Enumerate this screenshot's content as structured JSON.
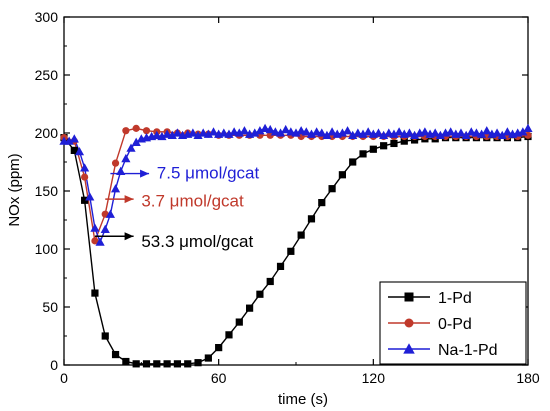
{
  "chart_data": {
    "type": "line",
    "xlabel": "time (s)",
    "ylabel": "NOx (ppm)",
    "xlim": [
      0,
      180
    ],
    "ylim": [
      0,
      300
    ],
    "xticks": [
      0,
      60,
      120,
      180
    ],
    "yticks": [
      0,
      50,
      100,
      150,
      200,
      250,
      300
    ],
    "grid": false,
    "legend_position": "bottom-right",
    "series": [
      {
        "name": "1-Pd",
        "color": "#000000",
        "marker": "square",
        "points": [
          [
            0,
            196
          ],
          [
            4,
            185
          ],
          [
            8,
            142
          ],
          [
            12,
            62
          ],
          [
            16,
            25
          ],
          [
            20,
            9
          ],
          [
            24,
            3
          ],
          [
            28,
            1
          ],
          [
            32,
            1
          ],
          [
            36,
            1
          ],
          [
            40,
            1
          ],
          [
            44,
            1
          ],
          [
            48,
            1
          ],
          [
            52,
            2
          ],
          [
            56,
            6
          ],
          [
            60,
            15
          ],
          [
            64,
            26
          ],
          [
            68,
            37
          ],
          [
            72,
            49
          ],
          [
            76,
            61
          ],
          [
            80,
            72
          ],
          [
            84,
            85
          ],
          [
            88,
            98
          ],
          [
            92,
            112
          ],
          [
            96,
            126
          ],
          [
            100,
            140
          ],
          [
            104,
            152
          ],
          [
            108,
            164
          ],
          [
            112,
            175
          ],
          [
            116,
            182
          ],
          [
            120,
            186
          ],
          [
            124,
            189
          ],
          [
            128,
            191
          ],
          [
            132,
            193
          ],
          [
            136,
            194
          ],
          [
            140,
            195
          ],
          [
            144,
            195
          ],
          [
            148,
            196
          ],
          [
            152,
            196
          ],
          [
            156,
            196
          ],
          [
            160,
            196
          ],
          [
            164,
            196
          ],
          [
            168,
            196
          ],
          [
            172,
            196
          ],
          [
            176,
            196
          ],
          [
            180,
            197
          ]
        ]
      },
      {
        "name": "0-Pd",
        "color": "#c0392b",
        "marker": "circle",
        "points": [
          [
            0,
            196
          ],
          [
            4,
            193
          ],
          [
            8,
            162
          ],
          [
            12,
            107
          ],
          [
            16,
            130
          ],
          [
            20,
            174
          ],
          [
            24,
            202
          ],
          [
            28,
            204
          ],
          [
            32,
            202
          ],
          [
            36,
            201
          ],
          [
            40,
            201
          ],
          [
            44,
            200
          ],
          [
            48,
            200
          ],
          [
            52,
            199
          ],
          [
            56,
            199
          ],
          [
            60,
            198
          ],
          [
            64,
            198
          ],
          [
            68,
            198
          ],
          [
            72,
            198
          ],
          [
            76,
            198
          ],
          [
            80,
            198
          ],
          [
            84,
            198
          ],
          [
            88,
            198
          ],
          [
            92,
            197
          ],
          [
            96,
            197
          ],
          [
            100,
            197
          ],
          [
            104,
            197
          ],
          [
            108,
            197
          ],
          [
            112,
            197
          ],
          [
            116,
            197
          ],
          [
            120,
            197
          ],
          [
            124,
            197
          ],
          [
            128,
            197
          ],
          [
            132,
            197
          ],
          [
            136,
            197
          ],
          [
            140,
            197
          ],
          [
            144,
            197
          ],
          [
            148,
            197
          ],
          [
            152,
            197
          ],
          [
            156,
            197
          ],
          [
            160,
            197
          ],
          [
            164,
            197
          ],
          [
            168,
            197
          ],
          [
            172,
            197
          ],
          [
            176,
            197
          ],
          [
            180,
            198
          ]
        ]
      },
      {
        "name": "Na-1-Pd",
        "color": "#1f1fd6",
        "marker": "triangle",
        "points": [
          [
            0,
            193
          ],
          [
            2,
            193
          ],
          [
            4,
            195
          ],
          [
            6,
            184
          ],
          [
            8,
            170
          ],
          [
            10,
            145
          ],
          [
            12,
            118
          ],
          [
            14,
            106
          ],
          [
            16,
            117
          ],
          [
            18,
            130
          ],
          [
            20,
            152
          ],
          [
            22,
            167
          ],
          [
            24,
            178
          ],
          [
            26,
            187
          ],
          [
            28,
            192
          ],
          [
            30,
            195
          ],
          [
            32,
            196
          ],
          [
            34,
            197
          ],
          [
            36,
            198
          ],
          [
            38,
            197
          ],
          [
            40,
            199
          ],
          [
            42,
            198
          ],
          [
            44,
            200
          ],
          [
            46,
            198
          ],
          [
            48,
            199
          ],
          [
            50,
            200
          ],
          [
            52,
            198
          ],
          [
            54,
            200
          ],
          [
            56,
            199
          ],
          [
            58,
            201
          ],
          [
            60,
            199
          ],
          [
            62,
            200
          ],
          [
            64,
            199
          ],
          [
            66,
            201
          ],
          [
            68,
            200
          ],
          [
            70,
            202
          ],
          [
            72,
            199
          ],
          [
            74,
            200
          ],
          [
            76,
            202
          ],
          [
            78,
            204
          ],
          [
            80,
            203
          ],
          [
            82,
            201
          ],
          [
            84,
            200
          ],
          [
            86,
            203
          ],
          [
            88,
            201
          ],
          [
            90,
            200
          ],
          [
            92,
            202
          ],
          [
            94,
            201
          ],
          [
            96,
            199
          ],
          [
            98,
            201
          ],
          [
            100,
            200
          ],
          [
            102,
            198
          ],
          [
            104,
            201
          ],
          [
            106,
            199
          ],
          [
            108,
            200
          ],
          [
            110,
            202
          ],
          [
            112,
            198
          ],
          [
            114,
            200
          ],
          [
            116,
            199
          ],
          [
            118,
            201
          ],
          [
            120,
            199
          ],
          [
            122,
            200
          ],
          [
            124,
            198
          ],
          [
            126,
            200
          ],
          [
            128,
            199
          ],
          [
            130,
            201
          ],
          [
            132,
            199
          ],
          [
            134,
            200
          ],
          [
            136,
            198
          ],
          [
            138,
            200
          ],
          [
            140,
            201
          ],
          [
            142,
            199
          ],
          [
            144,
            200
          ],
          [
            146,
            198
          ],
          [
            148,
            200
          ],
          [
            150,
            201
          ],
          [
            152,
            199
          ],
          [
            154,
            200
          ],
          [
            156,
            198
          ],
          [
            158,
            201
          ],
          [
            160,
            200
          ],
          [
            162,
            199
          ],
          [
            164,
            202
          ],
          [
            166,
            199
          ],
          [
            168,
            200
          ],
          [
            170,
            198
          ],
          [
            172,
            201
          ],
          [
            174,
            199
          ],
          [
            176,
            200
          ],
          [
            178,
            201
          ],
          [
            180,
            204
          ]
        ]
      }
    ],
    "annotations": [
      {
        "text": "7.5 μmol/gcat",
        "color": "#1f1fd6",
        "arrow_from": [
          18,
          165
        ],
        "arrow_to": [
          33,
          165
        ],
        "text_at": [
          36,
          166
        ]
      },
      {
        "text": "3.7 μmol/gcat",
        "color": "#c0392b",
        "arrow_from": [
          16,
          143
        ],
        "arrow_to": [
          27,
          143
        ],
        "text_at": [
          30,
          142
        ]
      },
      {
        "text": "53.3 μmol/gcat",
        "color": "#000000",
        "arrow_from": [
          12,
          111
        ],
        "arrow_to": [
          27,
          111
        ],
        "text_at": [
          30,
          107
        ]
      }
    ]
  }
}
